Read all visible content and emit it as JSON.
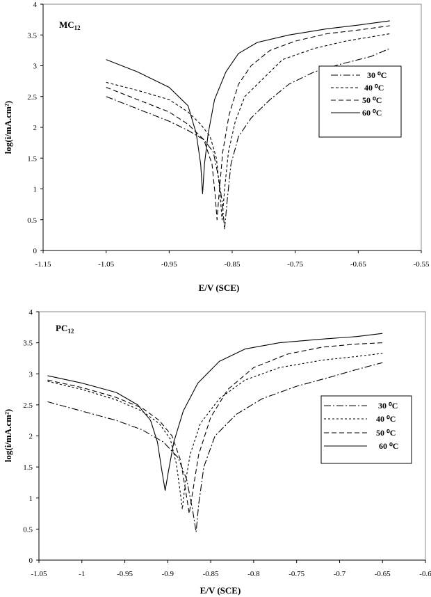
{
  "chart_data": [
    {
      "type": "line",
      "panel_label": "MC",
      "panel_sub": "12",
      "xlabel": "E/V  (SCE)",
      "ylabel": "log(i/mA.cm²)",
      "xlim": [
        -1.15,
        -0.55
      ],
      "ylim": [
        0,
        4
      ],
      "xticks": [
        -1.15,
        -1.05,
        -0.95,
        -0.85,
        -0.75,
        -0.65,
        -0.55
      ],
      "yticks": [
        0,
        0.5,
        1,
        1.5,
        2,
        2.5,
        3,
        3.5,
        4
      ],
      "xtick_labels": [
        "-1.15",
        "-1.05",
        "-0.95",
        "-0.85",
        "-0.75",
        "-0.65",
        "-0.55"
      ],
      "ytick_labels": [
        "0",
        "0.5",
        "1",
        "1.5",
        "2",
        "2.5",
        "3",
        "3.5",
        "4"
      ],
      "legend_position": "right",
      "series": [
        {
          "name": "30",
          "dash": "10,3,2,3",
          "values": [
            [
              -1.05,
              2.5
            ],
            [
              -1.0,
              2.3
            ],
            [
              -0.95,
              2.1
            ],
            [
              -0.92,
              1.95
            ],
            [
              -0.895,
              1.8
            ],
            [
              -0.88,
              1.6
            ],
            [
              -0.872,
              1.2
            ],
            [
              -0.866,
              0.8
            ],
            [
              -0.862,
              0.35
            ],
            [
              -0.858,
              0.8
            ],
            [
              -0.852,
              1.4
            ],
            [
              -0.84,
              1.85
            ],
            [
              -0.82,
              2.15
            ],
            [
              -0.79,
              2.45
            ],
            [
              -0.76,
              2.7
            ],
            [
              -0.72,
              2.9
            ],
            [
              -0.68,
              3.02
            ],
            [
              -0.63,
              3.15
            ],
            [
              -0.6,
              3.28
            ]
          ]
        },
        {
          "name": "40",
          "dash": "4,3",
          "values": [
            [
              -1.05,
              2.73
            ],
            [
              -1.0,
              2.6
            ],
            [
              -0.95,
              2.45
            ],
            [
              -0.92,
              2.25
            ],
            [
              -0.9,
              2.05
            ],
            [
              -0.885,
              1.85
            ],
            [
              -0.875,
              1.5
            ],
            [
              -0.87,
              1.0
            ],
            [
              -0.866,
              0.5
            ],
            [
              -0.862,
              1.0
            ],
            [
              -0.856,
              1.6
            ],
            [
              -0.845,
              2.1
            ],
            [
              -0.83,
              2.5
            ],
            [
              -0.8,
              2.8
            ],
            [
              -0.77,
              3.1
            ],
            [
              -0.72,
              3.28
            ],
            [
              -0.67,
              3.4
            ],
            [
              -0.6,
              3.52
            ]
          ]
        },
        {
          "name": "50",
          "dash": "7,4",
          "values": [
            [
              -1.05,
              2.65
            ],
            [
              -1.0,
              2.45
            ],
            [
              -0.95,
              2.25
            ],
            [
              -0.92,
              2.05
            ],
            [
              -0.895,
              1.8
            ],
            [
              -0.882,
              1.4
            ],
            [
              -0.877,
              0.9
            ],
            [
              -0.874,
              0.5
            ],
            [
              -0.871,
              0.9
            ],
            [
              -0.865,
              1.6
            ],
            [
              -0.855,
              2.2
            ],
            [
              -0.84,
              2.7
            ],
            [
              -0.82,
              3.0
            ],
            [
              -0.79,
              3.25
            ],
            [
              -0.75,
              3.4
            ],
            [
              -0.7,
              3.52
            ],
            [
              -0.65,
              3.58
            ],
            [
              -0.6,
              3.65
            ]
          ]
        },
        {
          "name": "60",
          "dash": "",
          "values": [
            [
              -1.05,
              3.1
            ],
            [
              -1.0,
              2.9
            ],
            [
              -0.95,
              2.65
            ],
            [
              -0.92,
              2.35
            ],
            [
              -0.907,
              1.9
            ],
            [
              -0.9,
              1.4
            ],
            [
              -0.897,
              0.92
            ],
            [
              -0.894,
              1.4
            ],
            [
              -0.888,
              1.9
            ],
            [
              -0.878,
              2.45
            ],
            [
              -0.86,
              2.9
            ],
            [
              -0.84,
              3.2
            ],
            [
              -0.81,
              3.38
            ],
            [
              -0.76,
              3.5
            ],
            [
              -0.7,
              3.6
            ],
            [
              -0.65,
              3.66
            ],
            [
              -0.6,
              3.73
            ]
          ]
        }
      ]
    },
    {
      "type": "line",
      "panel_label": "PC",
      "panel_sub": "12",
      "xlabel": "E/V  (SCE)",
      "ylabel": "log(i/mA.cm²)",
      "xlim": [
        -1.05,
        -0.6
      ],
      "ylim": [
        0,
        4
      ],
      "xticks": [
        -1.05,
        -1.0,
        -0.95,
        -0.9,
        -0.85,
        -0.8,
        -0.75,
        -0.7,
        -0.65,
        -0.6
      ],
      "yticks": [
        0,
        0.5,
        1,
        1.5,
        2,
        2.5,
        3,
        3.5,
        4
      ],
      "xtick_labels": [
        "-1.05",
        "-1",
        "-0.95",
        "-0.9",
        "-0.85",
        "-0.8",
        "-0.75",
        "-0.7",
        "-0.65",
        "-0.6"
      ],
      "ytick_labels": [
        "0",
        "0.5",
        "1",
        "1.5",
        "2",
        "2.5",
        "3",
        "3.5",
        "4"
      ],
      "legend_position": "right",
      "series": [
        {
          "name": "30",
          "dash": "10,3,2,3",
          "values": [
            [
              -1.04,
              2.55
            ],
            [
              -1.0,
              2.4
            ],
            [
              -0.96,
              2.25
            ],
            [
              -0.93,
              2.1
            ],
            [
              -0.905,
              1.9
            ],
            [
              -0.888,
              1.65
            ],
            [
              -0.878,
              1.3
            ],
            [
              -0.871,
              0.8
            ],
            [
              -0.867,
              0.45
            ],
            [
              -0.864,
              0.9
            ],
            [
              -0.858,
              1.5
            ],
            [
              -0.845,
              2.0
            ],
            [
              -0.82,
              2.35
            ],
            [
              -0.79,
              2.6
            ],
            [
              -0.75,
              2.8
            ],
            [
              -0.71,
              2.95
            ],
            [
              -0.68,
              3.07
            ],
            [
              -0.65,
              3.18
            ]
          ]
        },
        {
          "name": "40",
          "dash": "3,3",
          "values": [
            [
              -1.04,
              2.88
            ],
            [
              -1.0,
              2.75
            ],
            [
              -0.96,
              2.58
            ],
            [
              -0.93,
              2.4
            ],
            [
              -0.91,
              2.2
            ],
            [
              -0.897,
              1.95
            ],
            [
              -0.89,
              1.55
            ],
            [
              -0.886,
              1.15
            ],
            [
              -0.883,
              0.82
            ],
            [
              -0.88,
              1.2
            ],
            [
              -0.874,
              1.7
            ],
            [
              -0.862,
              2.2
            ],
            [
              -0.84,
              2.6
            ],
            [
              -0.81,
              2.9
            ],
            [
              -0.77,
              3.1
            ],
            [
              -0.72,
              3.22
            ],
            [
              -0.68,
              3.28
            ],
            [
              -0.65,
              3.33
            ]
          ]
        },
        {
          "name": "50",
          "dash": "7,4",
          "values": [
            [
              -1.04,
              2.9
            ],
            [
              -1.0,
              2.78
            ],
            [
              -0.96,
              2.62
            ],
            [
              -0.93,
              2.45
            ],
            [
              -0.91,
              2.25
            ],
            [
              -0.895,
              2.0
            ],
            [
              -0.885,
              1.6
            ],
            [
              -0.879,
              1.1
            ],
            [
              -0.875,
              0.75
            ],
            [
              -0.871,
              1.1
            ],
            [
              -0.864,
              1.7
            ],
            [
              -0.85,
              2.3
            ],
            [
              -0.83,
              2.75
            ],
            [
              -0.8,
              3.1
            ],
            [
              -0.76,
              3.32
            ],
            [
              -0.72,
              3.43
            ],
            [
              -0.68,
              3.48
            ],
            [
              -0.65,
              3.5
            ]
          ]
        },
        {
          "name": "60",
          "dash": "",
          "values": [
            [
              -1.04,
              2.97
            ],
            [
              -1.0,
              2.85
            ],
            [
              -0.96,
              2.7
            ],
            [
              -0.935,
              2.5
            ],
            [
              -0.92,
              2.25
            ],
            [
              -0.912,
              1.9
            ],
            [
              -0.907,
              1.45
            ],
            [
              -0.903,
              1.12
            ],
            [
              -0.899,
              1.45
            ],
            [
              -0.893,
              1.9
            ],
            [
              -0.882,
              2.4
            ],
            [
              -0.865,
              2.85
            ],
            [
              -0.84,
              3.2
            ],
            [
              -0.81,
              3.4
            ],
            [
              -0.77,
              3.5
            ],
            [
              -0.72,
              3.56
            ],
            [
              -0.68,
              3.6
            ],
            [
              -0.65,
              3.65
            ]
          ]
        }
      ]
    }
  ],
  "legend_labels": [
    "30 ⁰C",
    "40 ⁰C",
    "50 ⁰C",
    "60 ⁰C"
  ]
}
